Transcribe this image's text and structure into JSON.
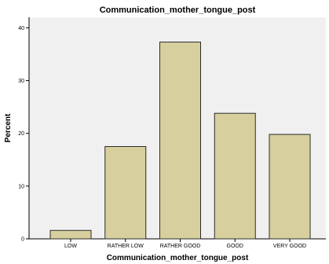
{
  "chart_data": {
    "type": "bar",
    "title": "Communication_mother_tongue_post",
    "xlabel": "Communication_mother_tongue_post",
    "ylabel": "Percent",
    "categories": [
      "LOW",
      "RATHER LOW",
      "RATHER GOOD",
      "GOOD",
      "VERY GOOD"
    ],
    "values": [
      1.6,
      17.5,
      37.3,
      23.8,
      19.8
    ],
    "ylim": [
      0,
      42
    ],
    "yticks": [
      0,
      10,
      20,
      30,
      40
    ],
    "grid": false,
    "legend": "none",
    "colors": {
      "bar_fill": "#d7d09e",
      "bar_stroke": "#2b2b2b",
      "plot_background": "#f0f0f0",
      "axis": "#000000"
    }
  }
}
